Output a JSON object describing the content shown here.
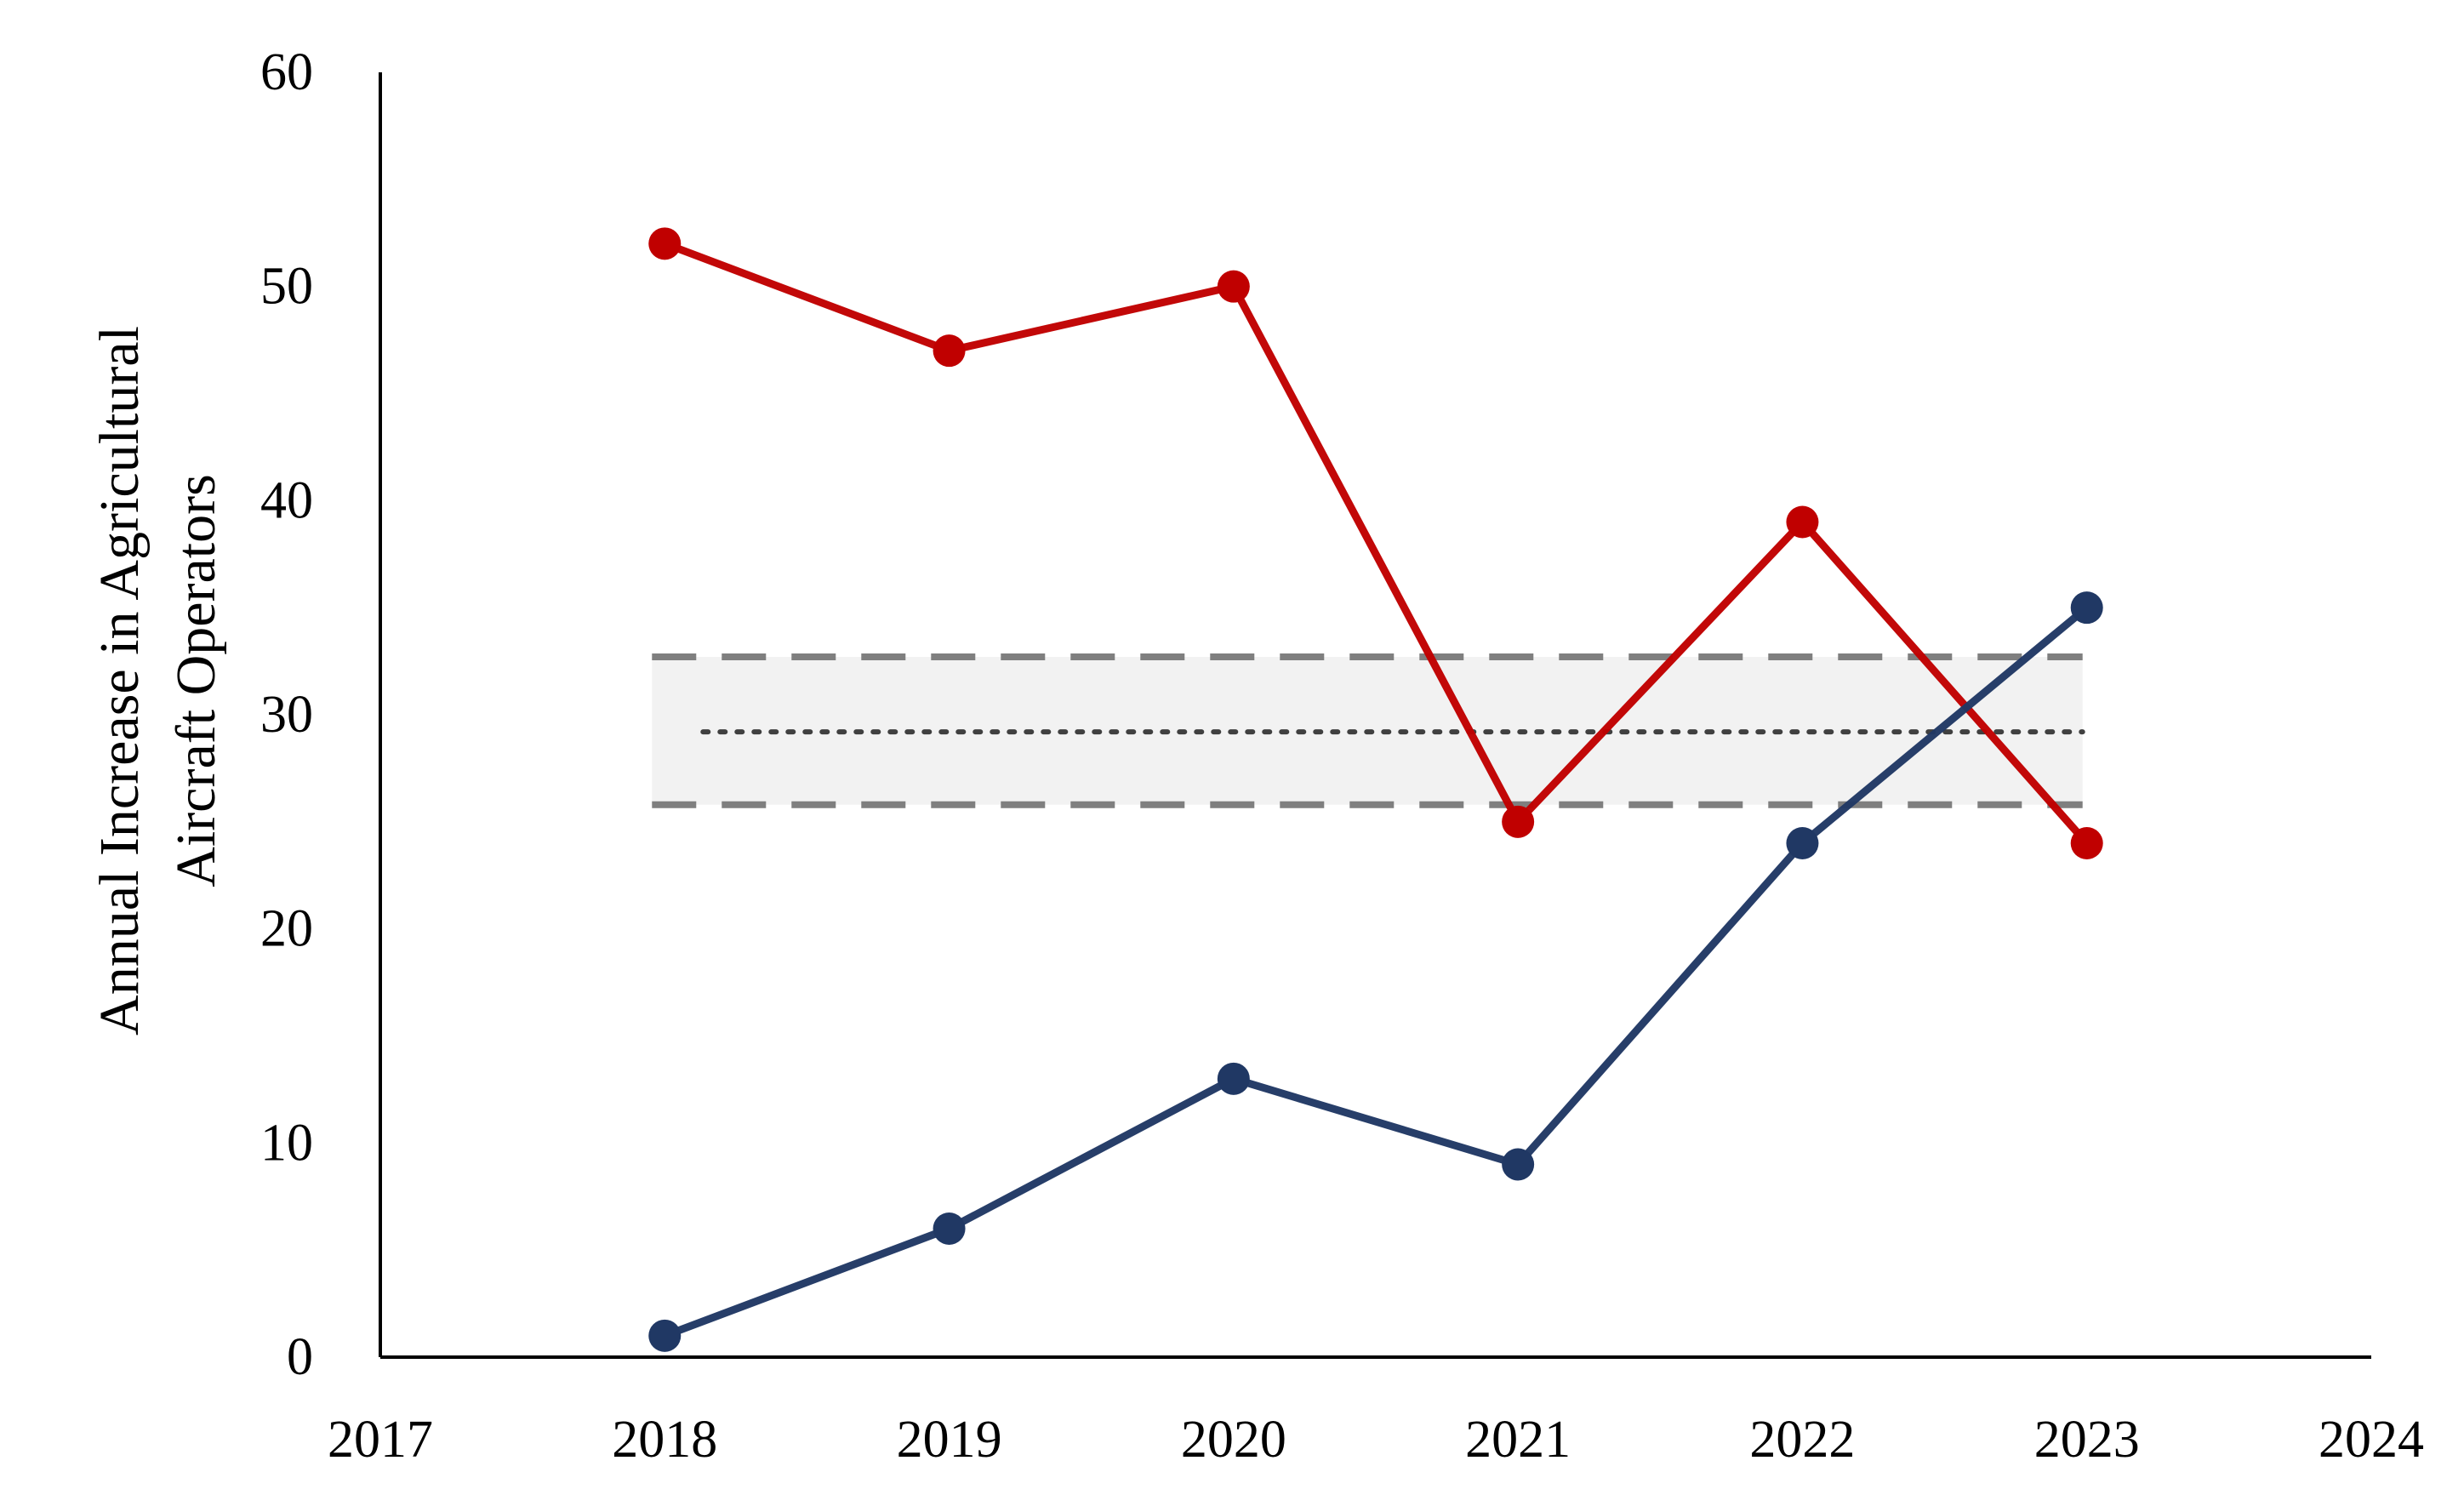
{
  "chart_data": {
    "type": "line",
    "title": "",
    "xlabel": "",
    "ylabel_lines": [
      "Annual Increase in Agricultural",
      "Aircraft Operators"
    ],
    "xlim": [
      2017,
      2024
    ],
    "ylim": [
      0,
      60
    ],
    "x_ticks": [
      2017,
      2018,
      2019,
      2020,
      2021,
      2022,
      2023,
      2024
    ],
    "y_ticks": [
      0,
      10,
      20,
      30,
      40,
      50,
      60
    ],
    "grid": false,
    "legend": "none",
    "x": [
      2018,
      2019,
      2020,
      2021,
      2022,
      2023
    ],
    "series": [
      {
        "color": "#c00000",
        "values": [
          52,
          47,
          50,
          25,
          39,
          24
        ]
      },
      {
        "color": "#203864",
        "values": [
          1,
          6,
          13,
          9,
          24,
          35
        ]
      }
    ],
    "reference_band": {
      "x_range": [
        2018,
        2023
      ],
      "lower": 25.8,
      "upper": 32.7,
      "center": 29.2,
      "fill_color": "#f2f2f2",
      "line_color": "#7f7f7f",
      "center_line_color": "#404040"
    }
  }
}
